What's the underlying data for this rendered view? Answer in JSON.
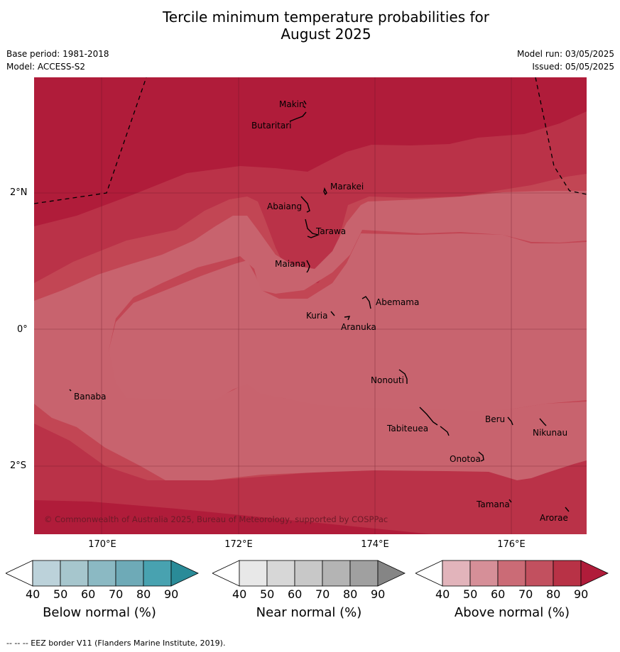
{
  "header": {
    "title_line1": "Tercile minimum temperature probabilities for",
    "title_line2": "August 2025",
    "base_period": "Base period: 1981-2018",
    "model": "Model: ACCESS-S2",
    "model_run": "Model run: 03/05/2025",
    "issued": "Issued: 05/05/2025"
  },
  "map": {
    "lat_labels": [
      "2°N",
      "0°",
      "2°S"
    ],
    "lon_labels": [
      "170°E",
      "172°E",
      "174°E",
      "176°E"
    ],
    "islands": [
      "Makin",
      "Butaritari",
      "Marakei",
      "Abaiang",
      "Tarawa",
      "Maiana",
      "Abemama",
      "Kuria",
      "Aranuka",
      "Nonouti",
      "Banaba",
      "Beru",
      "Nikunau",
      "Tabiteuea",
      "Onotoa",
      "Tamana",
      "Arorae"
    ],
    "copyright": "© Commonwealth of Australia 2025, Bureau of Meteorology, supported by COSPPac",
    "colors": {
      "above_90": "#b01c3a",
      "above_80": "#ba3248",
      "above_70": "#c24654",
      "above_60": "#c8636e"
    }
  },
  "legend": {
    "ticks": [
      "40",
      "50",
      "60",
      "70",
      "80",
      "90"
    ],
    "below": {
      "label": "Below normal (%)",
      "colors": [
        "#ffffff",
        "#bcd2da",
        "#a6c6cd",
        "#8bb9c3",
        "#6eaab7",
        "#48a2b0",
        "#2a8b98"
      ]
    },
    "near": {
      "label": "Near normal (%)",
      "colors": [
        "#ffffff",
        "#e8e8e8",
        "#d7d7d7",
        "#c8c8c8",
        "#b4b4b4",
        "#a0a0a0",
        "#858585"
      ]
    },
    "above": {
      "label": "Above normal (%)",
      "colors": [
        "#ffffff",
        "#e2b4bb",
        "#d68f98",
        "#cb6b76",
        "#c2505f",
        "#b83246",
        "#b01c3a"
      ]
    }
  },
  "footer": {
    "eez_note": "--  --  -- EEZ border V11 (Flanders Marine Institute, 2019)."
  }
}
